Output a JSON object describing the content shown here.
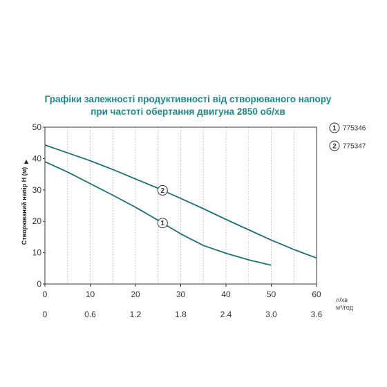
{
  "chart_data": {
    "type": "line",
    "title_lines": [
      "Графіки залежності продуктивності від створюваного напору",
      "при частоті обертання двигуна 2850 об/хв"
    ],
    "ylabel": "Створюваний напір Н (м)",
    "x_unit": "л/хв",
    "x2_unit": "м³/год",
    "xlim": [
      0,
      60
    ],
    "ylim": [
      0,
      50
    ],
    "x_ticks": [
      "0",
      "10",
      "20",
      "30",
      "40",
      "50",
      "60"
    ],
    "x2_ticks": [
      "0",
      "0.6",
      "1.2",
      "1.8",
      "2.4",
      "3.0",
      "3.6"
    ],
    "y_ticks": [
      "0",
      "10",
      "20",
      "30",
      "40",
      "50"
    ],
    "grid": "vertical dashed",
    "legend_position": "right",
    "colors": {
      "title": "#1a8a8c",
      "line": "#1a6f7c",
      "axis": "#333333",
      "grid": "#bbbbbb"
    },
    "series": [
      {
        "name": "775346",
        "marker": "1",
        "x": [
          0,
          5,
          10,
          15,
          20,
          25,
          30,
          35,
          40,
          45,
          50
        ],
        "y": [
          39,
          35.7,
          32,
          28.3,
          24.5,
          20.3,
          16,
          12.3,
          9.8,
          7.7,
          6
        ]
      },
      {
        "name": "775347",
        "marker": "2",
        "x": [
          0,
          5,
          10,
          15,
          20,
          25,
          30,
          35,
          40,
          45,
          50,
          55,
          60
        ],
        "y": [
          44.3,
          41.8,
          39.3,
          36.5,
          33.5,
          30.5,
          27.3,
          24,
          20.6,
          17.3,
          14,
          11,
          8.3
        ]
      }
    ]
  }
}
